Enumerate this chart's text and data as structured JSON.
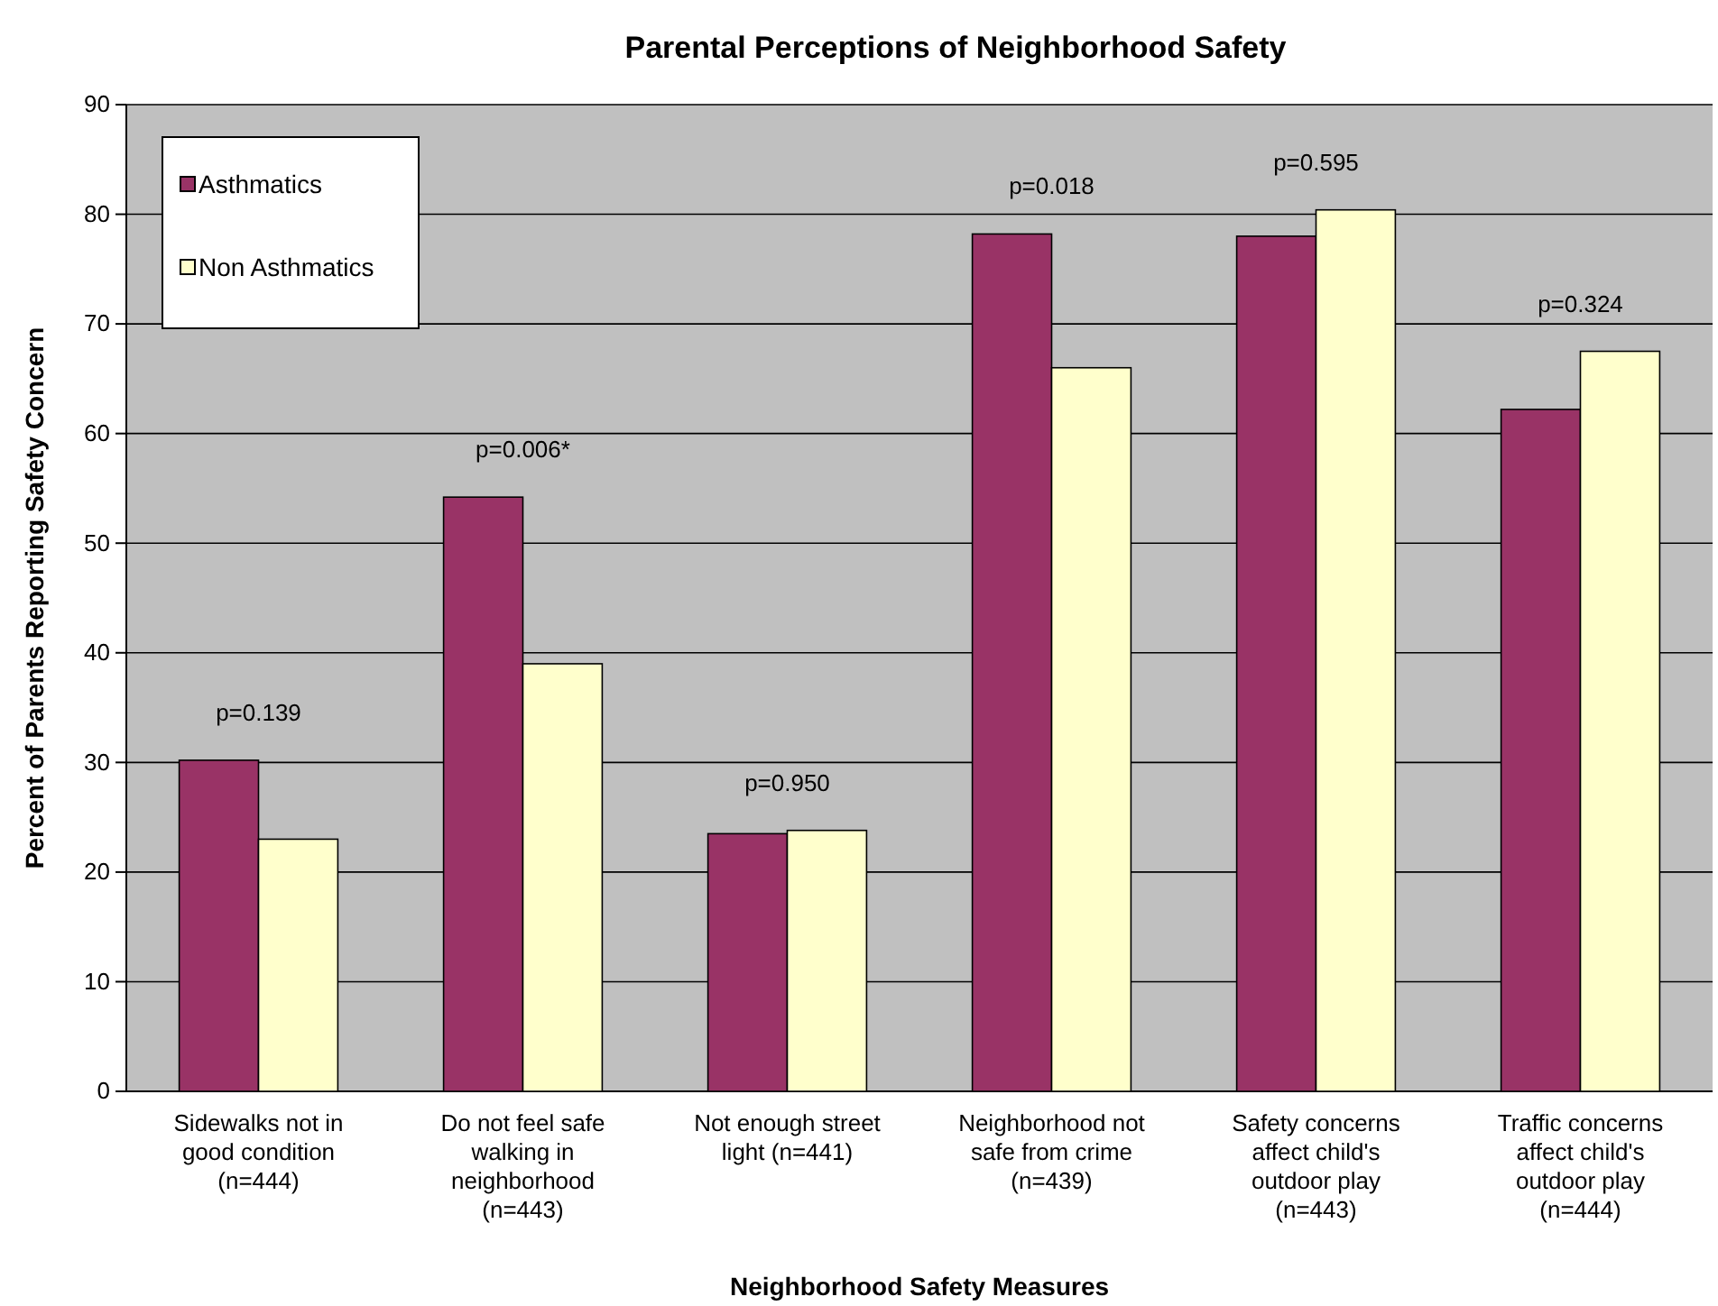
{
  "chart_data": {
    "type": "bar",
    "title": "Parental Perceptions of Neighborhood Safety",
    "xlabel": "Neighborhood Safety Measures",
    "ylabel": "Percent of Parents Reporting Safety Concern",
    "categories": [
      "Sidewalks not in good condition (n=444)",
      "Do not feel safe walking in neighborhood (n=443)",
      "Not enough street light (n=441)",
      "Neighborhood not safe from crime (n=439)",
      "Safety concerns affect child's outdoor play (n=443)",
      "Traffic concerns affect child's outdoor play (n=444)"
    ],
    "series": [
      {
        "name": "Asthmatics",
        "color": "#993366",
        "values": [
          30.2,
          54.2,
          23.5,
          78.2,
          78,
          62.2
        ]
      },
      {
        "name": "Non Asthmatics",
        "color": "#ffffcc",
        "values": [
          23,
          39,
          23.8,
          66,
          80.4,
          67.5
        ]
      }
    ],
    "ylim": [
      0,
      90
    ],
    "yticks": [
      0,
      10,
      20,
      30,
      40,
      50,
      60,
      70,
      80,
      90
    ],
    "grid": "y",
    "legend": "top left",
    "annotations": [
      "p=0.139",
      "p=0.006*",
      "p=0.950",
      "p=0.018",
      "p=0.595",
      "p=0.324"
    ]
  }
}
